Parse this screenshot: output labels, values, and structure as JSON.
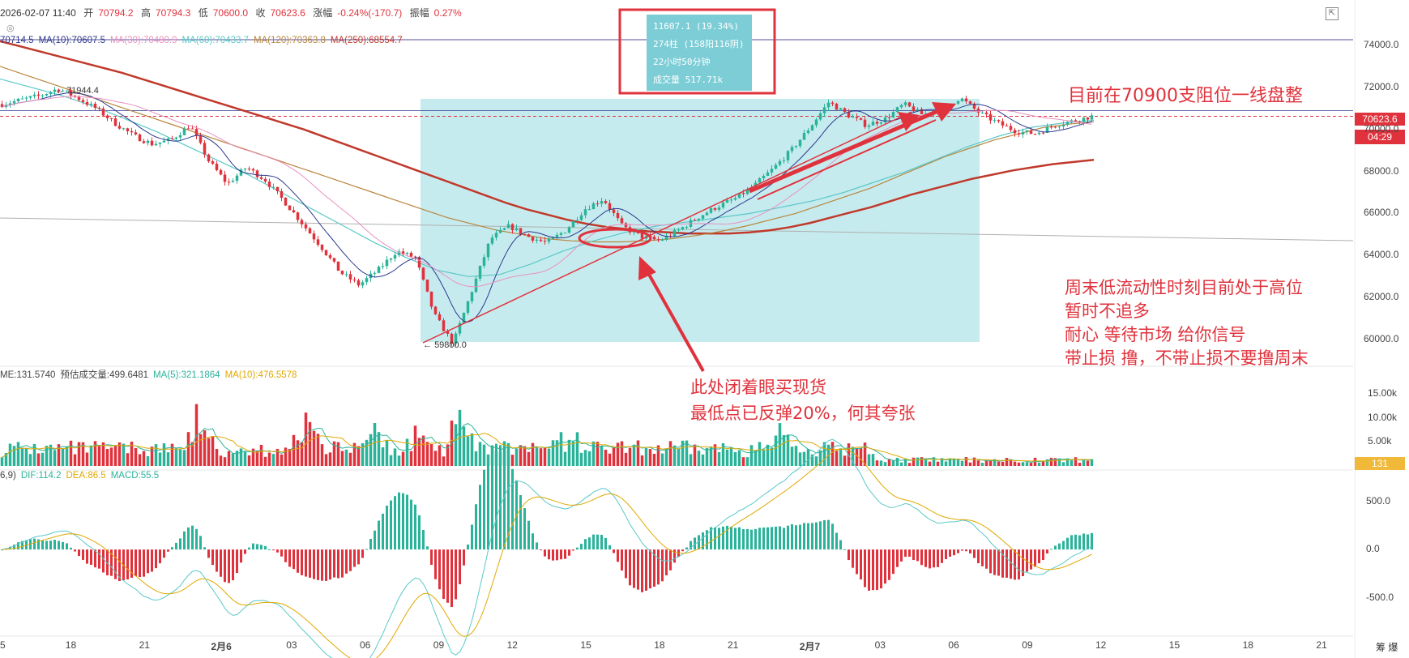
{
  "header": {
    "datetime": "2026-02-07 11:40",
    "open_label": "开",
    "open": "70794.2",
    "high_label": "高",
    "high": "70794.3",
    "low_label": "低",
    "low": "70600.0",
    "close": "70623.6",
    "change_label": "涨幅",
    "change": "-0.24%(-170.7)",
    "amplitude_label": "振幅",
    "amplitude": "0.27%"
  },
  "ma_line": [
    {
      "text": "70714.5",
      "color": "#2b3a8f"
    },
    {
      "text": "MA(10):70607.5",
      "color": "#2b3a8f"
    },
    {
      "text": "MA(30):70480.9",
      "color": "#e891c0"
    },
    {
      "text": "MA(60):70433.7",
      "color": "#5cc8c8"
    },
    {
      "text": "MA(120):70363.8",
      "color": "#b8863c"
    },
    {
      "text": "MA(250):68554.7",
      "color": "#c0392b"
    }
  ],
  "volume_header": [
    {
      "text": "ME:131.5740",
      "color": "#444444"
    },
    {
      "text": "预估成交量:499.6481",
      "color": "#444444"
    },
    {
      "text": "MA(5):321.1864",
      "color": "#2bb39a"
    },
    {
      "text": "MA(10):476.5578",
      "color": "#e0a800"
    }
  ],
  "macd_header": [
    {
      "text": "6,9)",
      "color": "#444444"
    },
    {
      "text": "DIF:114.2",
      "color": "#2bb39a"
    },
    {
      "text": "DEA:86.5",
      "color": "#e0a800"
    },
    {
      "text": "MACD:55.5",
      "color": "#2bb39a"
    }
  ],
  "info_box": {
    "line1": "11607.1 (19.34%)",
    "line2": "274柱 (158阳116阴)",
    "line3": "22小时50分钟",
    "line4": "成交量 517.71k"
  },
  "annotations": {
    "resistance": "目前在70900支阻位一线盘整",
    "weekend": [
      "周末低流动性时刻目前处于高位",
      "暂时不追多",
      "耐心 等待市场 给你信号",
      "带止损 撸，不带止损不要撸周末"
    ],
    "spot": [
      "此处闭着眼买现货",
      "最低点已反弹20%，何其夸张"
    ]
  },
  "labels": {
    "high_mark": "71944.4",
    "low_mark": "59800.0",
    "current_price": "70623.6",
    "countdown": "04:29",
    "volume_tag": "131"
  },
  "colors": {
    "up": "#2bb39a",
    "down": "#e0323c",
    "highlight": "#c6ebee",
    "annotation": "#e0323c",
    "ma250": "#c0392b"
  },
  "chart_data": [
    {
      "type": "line",
      "name": "price",
      "y_ticks": [
        74000.0,
        72000.0,
        70000.0,
        68000.0,
        66000.0,
        64000.0,
        62000.0,
        60000.0
      ],
      "x_ticks": [
        "5",
        "18",
        "21",
        "2月6",
        "03",
        "06",
        "09",
        "12",
        "15",
        "18",
        "21",
        "2月7",
        "03",
        "06",
        "09",
        "12",
        "15",
        "18",
        "21"
      ],
      "ylim": [
        59000,
        75000
      ],
      "close": [
        71200,
        71400,
        71600,
        71944.4,
        71500,
        71000,
        70300,
        69700,
        69300,
        69500,
        70200,
        68500,
        67400,
        68200,
        67600,
        66600,
        65500,
        64400,
        63200,
        62600,
        63300,
        64200,
        63900,
        61200,
        59800,
        62300,
        64800,
        65400,
        64900,
        64600,
        65200,
        66200,
        66700,
        65400,
        64900,
        64700,
        65200,
        65800,
        66300,
        66700,
        67300,
        68100,
        69000,
        70100,
        71300,
        70700,
        70200,
        70500,
        71200,
        70700,
        71000,
        71500,
        70800,
        70300,
        69900,
        69800,
        70200,
        70400,
        70623.6
      ],
      "ma250": [
        74200,
        73950,
        73700,
        73450,
        73200,
        72950,
        72700,
        72400,
        72100,
        71800,
        71500,
        71200,
        70900,
        70600,
        70300,
        70000,
        69650,
        69300,
        68950,
        68600,
        68250,
        67900,
        67550,
        67200,
        66850,
        66500,
        66200,
        65950,
        65700,
        65500,
        65350,
        65250,
        65150,
        65100,
        65050,
        65050,
        65050,
        65100,
        65200,
        65350,
        65550,
        65800,
        66050,
        66300,
        66600,
        66900,
        67150,
        67400,
        67650,
        67850,
        68050,
        68200,
        68350,
        68450,
        68554.7
      ],
      "ma120": [
        73000,
        72600,
        72200,
        71800,
        71400,
        71000,
        70600,
        70200,
        69800,
        69400,
        69000,
        68600,
        68200,
        67800,
        67400,
        67000,
        66600,
        66200,
        65800,
        65500,
        65200,
        65000,
        64800,
        64700,
        64650,
        64650,
        64700,
        64800,
        64950,
        65150,
        65400,
        65700,
        66000,
        66400,
        66800,
        67200,
        67700,
        68200,
        68700,
        69100,
        69500,
        69800,
        70100,
        70250,
        70363.8
      ],
      "ma60": [
        72400,
        72000,
        71600,
        71100,
        70500,
        69900,
        69200,
        68500,
        67800,
        67000,
        66200,
        65400,
        64600,
        63900,
        63300,
        63000,
        63100,
        63600,
        64200,
        64700,
        65100,
        65400,
        65600,
        65800,
        66000,
        66300,
        66600,
        67000,
        67500,
        68000,
        68600,
        69200,
        69700,
        70100,
        70300,
        70433.7
      ]
    },
    {
      "type": "bar",
      "name": "volume",
      "y_ticks": [
        "15.00k",
        "10.00k",
        "5.00k"
      ],
      "ylim": [
        0,
        18000
      ]
    },
    {
      "type": "bar",
      "name": "macd",
      "y_ticks": [
        500.0,
        0.0,
        -500.0
      ],
      "ylim": [
        -900,
        700
      ]
    }
  ]
}
